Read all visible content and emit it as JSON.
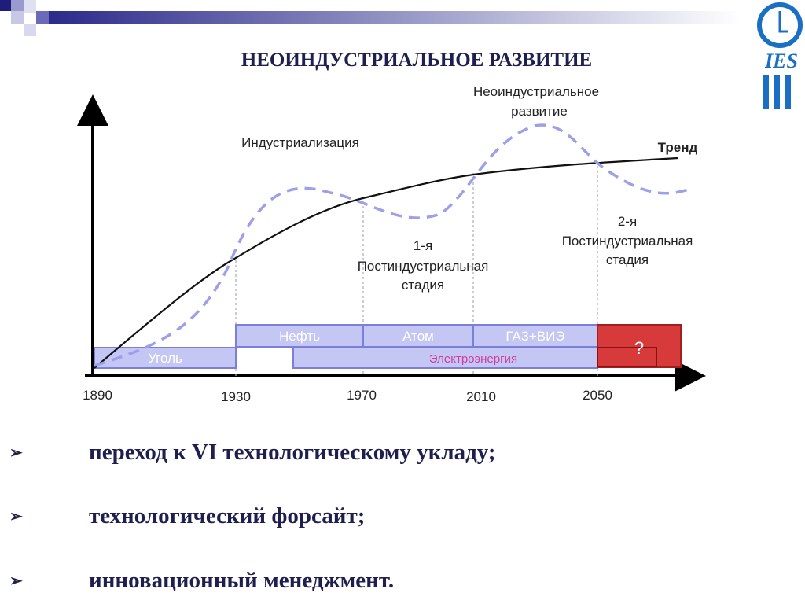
{
  "header": {
    "title": "НЕОИНДУСТРИАЛЬНОЕ РАЗВИТИЕ",
    "logo": "IES"
  },
  "diagram": {
    "axis_labels": [
      "1890",
      "1930",
      "1970",
      "2010",
      "2050"
    ],
    "trend_label": "Тренд",
    "industrialization_label": "Индустриализация",
    "neo_label": [
      "Неоиндустриальное",
      "развитие"
    ],
    "stages": [
      [
        "1-я",
        "Постиндустриальная",
        "стадия"
      ],
      [
        "2-я",
        "Постиндустриальная",
        "стадия"
      ]
    ],
    "bars": [
      "Уголь",
      "Нефть",
      "Атом",
      "ГАЗ+ВИЭ",
      "Электроэнергия",
      "?"
    ]
  },
  "bullets": [
    "переход к VI технологическому укладу;",
    "технологический форсайт;",
    "инновационный менеджмент."
  ]
}
